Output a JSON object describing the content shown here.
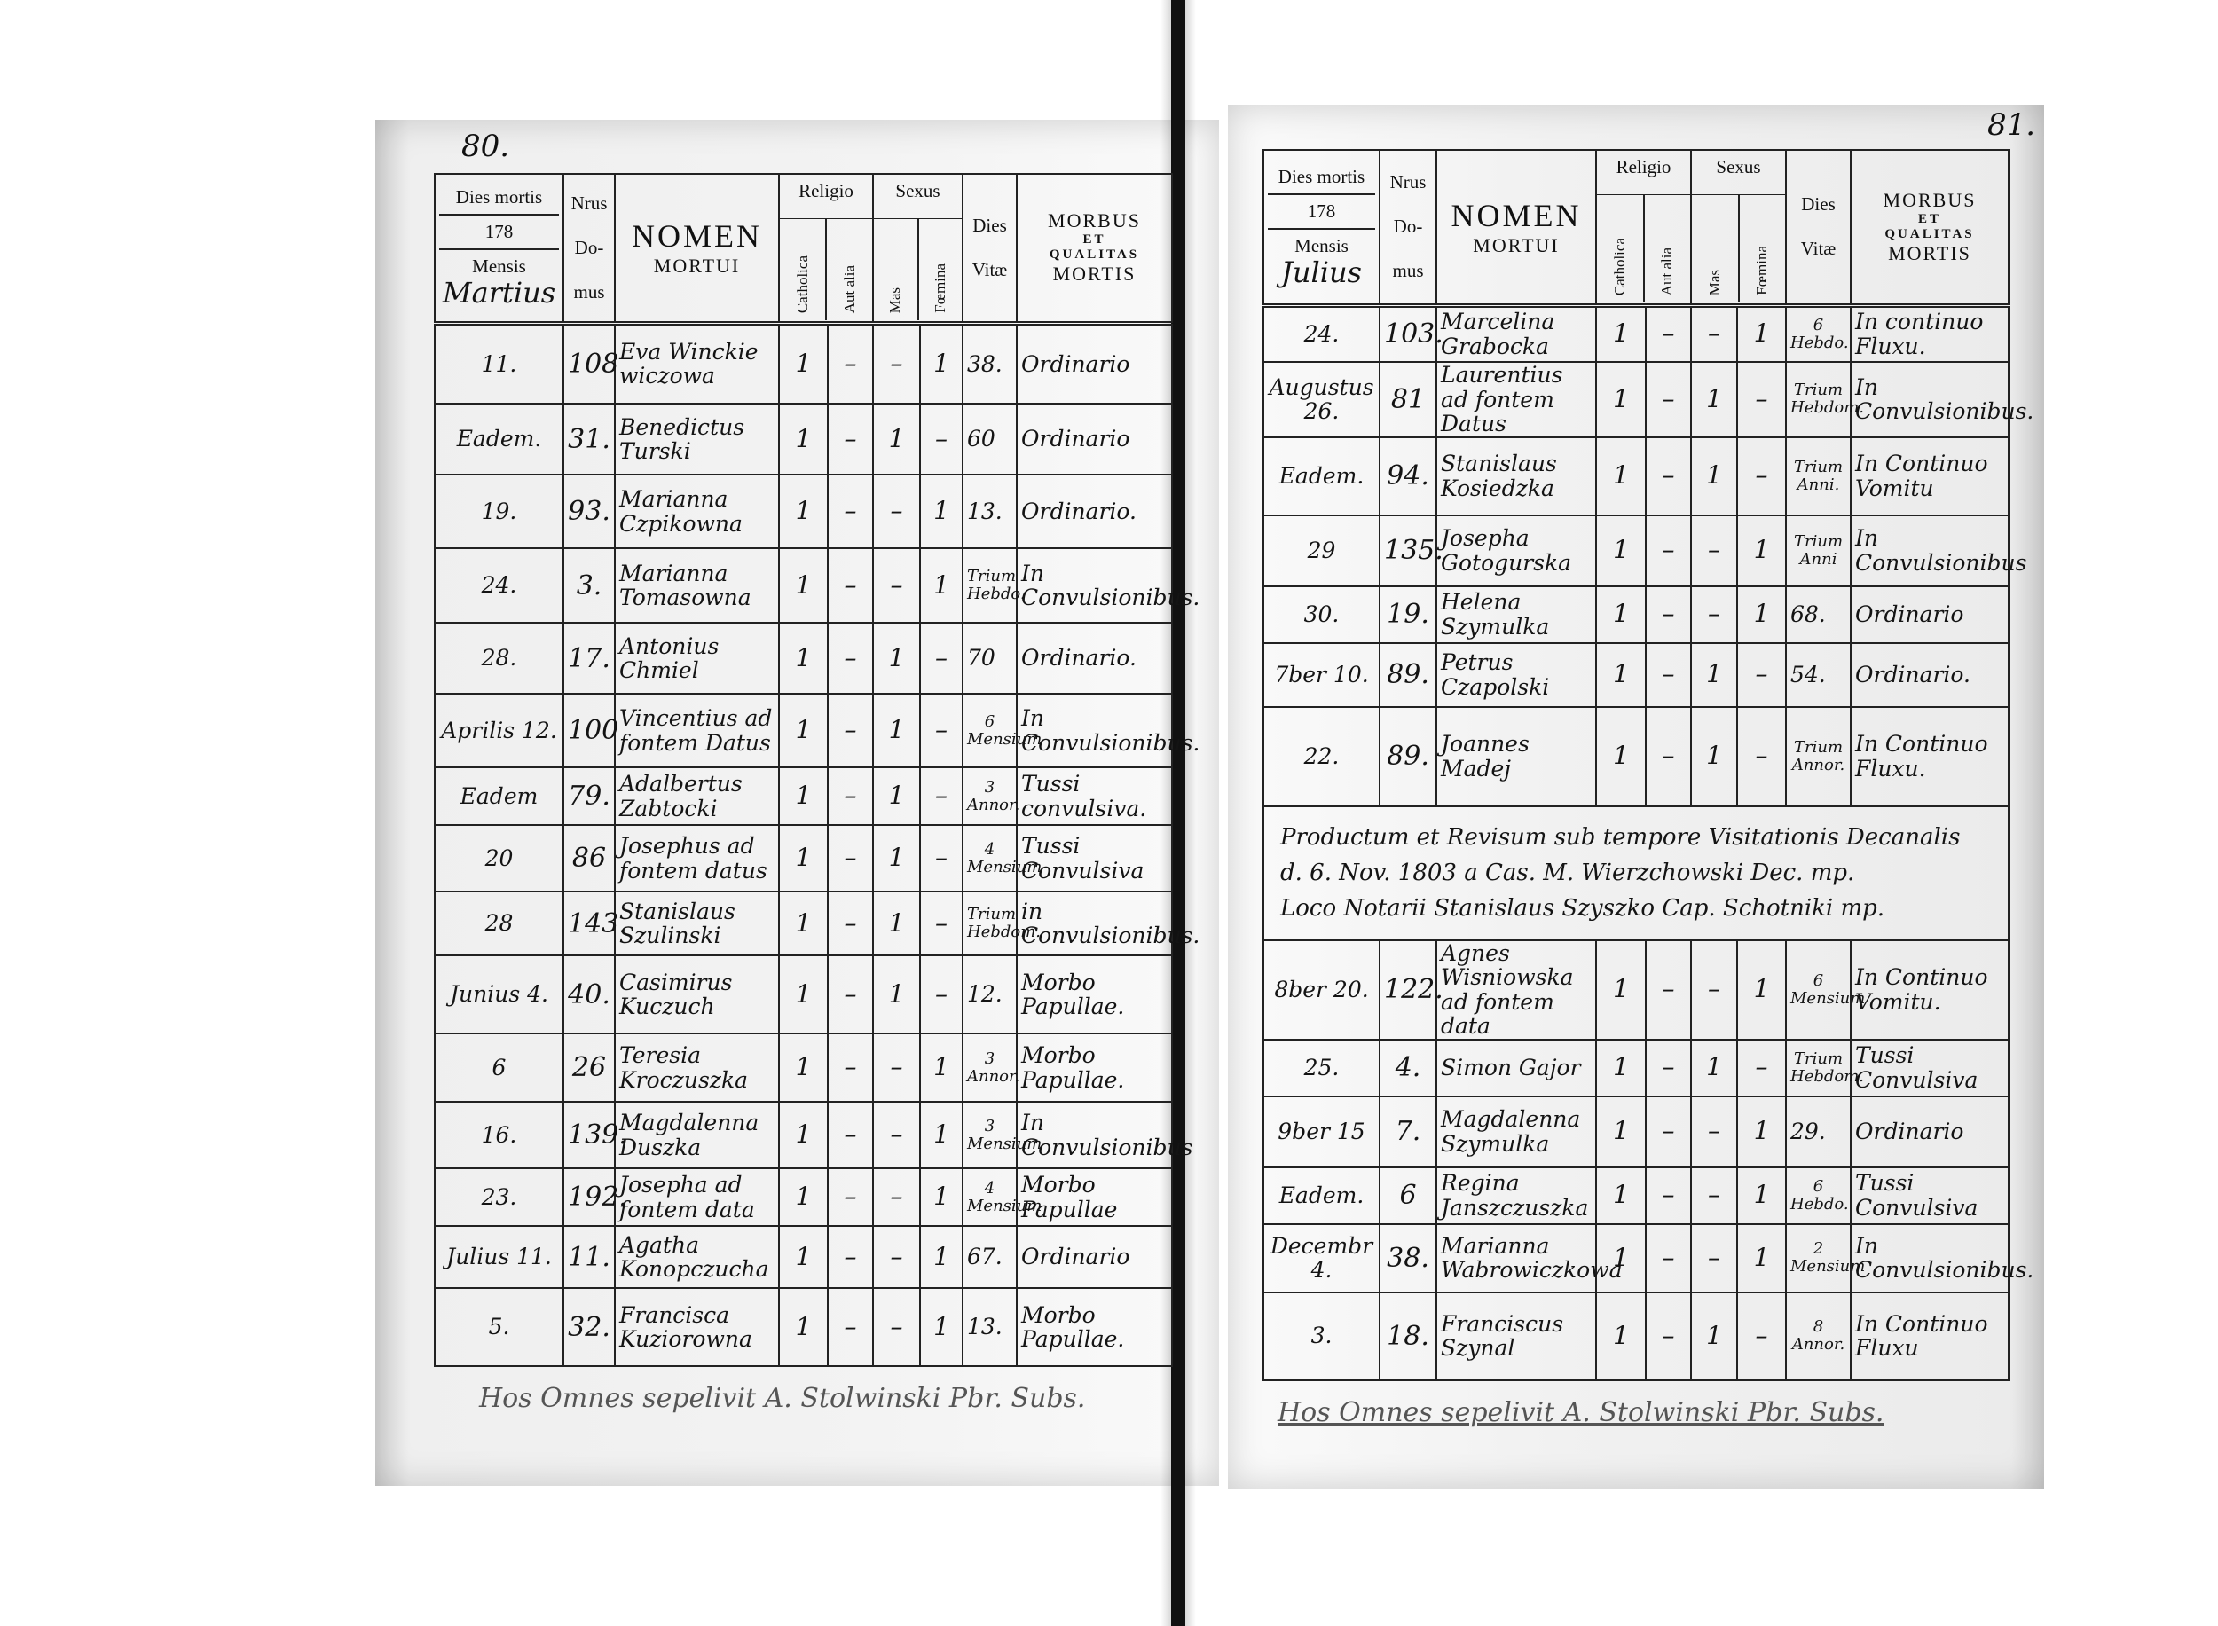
{
  "header": {
    "dies_mortis": "Dies mortis",
    "year": "178",
    "mensis": "Mensis",
    "nrus": "Nrus",
    "do": "Do-",
    "mus": "mus",
    "nomen": "NOMEN",
    "mortui": "MORTUI",
    "religio": "Religio",
    "sexus": "Sexus",
    "catholica": "Catholica",
    "aut_alia": "Aut alia",
    "mas": "Mas",
    "femina": "Fœmina",
    "dies": "Dies",
    "vitae": "Vitæ",
    "morbus": "MORBUS",
    "et": "ET",
    "qualitas": "QUALITAS",
    "mortis": "MORTIS"
  },
  "pages": [
    {
      "page_number": "80.",
      "month": "Martius",
      "rows": [
        {
          "day": "11.",
          "house": "108",
          "name": "Eva Winckie wiczowa",
          "catholica": "1",
          "aut_alia": "–",
          "mas": "–",
          "femina": "1",
          "dies_vitae": "38.",
          "morbus": "Ordinario"
        },
        {
          "day": "Eadem.",
          "house": "31.",
          "name": "Benedictus Turski",
          "catholica": "1",
          "aut_alia": "–",
          "mas": "1",
          "femina": "–",
          "dies_vitae": "60",
          "morbus": "Ordinario"
        },
        {
          "day": "19.",
          "house": "93.",
          "name": "Marianna Czpikowna",
          "catholica": "1",
          "aut_alia": "–",
          "mas": "–",
          "femina": "1",
          "dies_vitae": "13.",
          "morbus": "Ordinario."
        },
        {
          "day": "24.",
          "house": "3.",
          "name": "Marianna Tomasowna",
          "catholica": "1",
          "aut_alia": "–",
          "mas": "–",
          "femina": "1",
          "dies_vitae": "Trium Hebdo.",
          "morbus": "In Convulsionibus."
        },
        {
          "day": "28.",
          "house": "17.",
          "name": "Antonius Chmiel",
          "catholica": "1",
          "aut_alia": "–",
          "mas": "1",
          "femina": "–",
          "dies_vitae": "70",
          "morbus": "Ordinario."
        },
        {
          "day": "Aprilis 12.",
          "house": "100",
          "name": "Vincentius ad fontem Datus",
          "catholica": "1",
          "aut_alia": "–",
          "mas": "1",
          "femina": "–",
          "dies_vitae": "6 Mensium",
          "morbus": "In Convulsionibus."
        },
        {
          "day": "Eadem",
          "house": "79.",
          "name": "Adalbertus Zabtocki",
          "catholica": "1",
          "aut_alia": "–",
          "mas": "1",
          "femina": "–",
          "dies_vitae": "3 Annor.",
          "morbus": "Tussi convulsiva."
        },
        {
          "day": "20",
          "house": "86",
          "name": "Josephus ad fontem datus",
          "catholica": "1",
          "aut_alia": "–",
          "mas": "1",
          "femina": "–",
          "dies_vitae": "4 Mensium",
          "morbus": "Tussi Convulsiva"
        },
        {
          "day": "28",
          "house": "143.",
          "name": "Stanislaus Szulinski",
          "catholica": "1",
          "aut_alia": "–",
          "mas": "1",
          "femina": "–",
          "dies_vitae": "Trium Hebdom.",
          "morbus": "in Convulsionibus."
        },
        {
          "day": "Junius 4.",
          "house": "40.",
          "name": "Casimirus Kuczuch",
          "catholica": "1",
          "aut_alia": "–",
          "mas": "1",
          "femina": "–",
          "dies_vitae": "12.",
          "morbus": "Morbo Papullae."
        },
        {
          "day": "6",
          "house": "26",
          "name": "Teresia Kroczuszka",
          "catholica": "1",
          "aut_alia": "–",
          "mas": "–",
          "femina": "1",
          "dies_vitae": "3 Annor.",
          "morbus": "Morbo Papullae."
        },
        {
          "day": "16.",
          "house": "139.",
          "name": "Magdalenna Duszka",
          "catholica": "1",
          "aut_alia": "–",
          "mas": "–",
          "femina": "1",
          "dies_vitae": "3 Mensium",
          "morbus": "In Convulsionibus"
        },
        {
          "day": "23.",
          "house": "192.",
          "name": "Josepha ad fontem data",
          "catholica": "1",
          "aut_alia": "–",
          "mas": "–",
          "femina": "1",
          "dies_vitae": "4 Mensium",
          "morbus": "Morbo Papullae"
        },
        {
          "day": "Julius 11.",
          "house": "11.",
          "name": "Agatha Konopczucha",
          "catholica": "1",
          "aut_alia": "–",
          "mas": "–",
          "femina": "1",
          "dies_vitae": "67.",
          "morbus": "Ordinario"
        },
        {
          "day": "5.",
          "house": "32.",
          "name": "Francisca Kuziorowna",
          "catholica": "1",
          "aut_alia": "–",
          "mas": "–",
          "femina": "1",
          "dies_vitae": "13.",
          "morbus": "Morbo Papullae."
        }
      ],
      "footer": "Hos Omnes sepelivit A. Stolwinski Pbr. Subs."
    },
    {
      "page_number": "81.",
      "month": "Julius",
      "rows": [
        {
          "day": "24.",
          "house": "103.",
          "name": "Marcelina Grabocka",
          "catholica": "1",
          "aut_alia": "–",
          "mas": "–",
          "femina": "1",
          "dies_vitae": "6 Hebdo.",
          "morbus": "In continuo Fluxu."
        },
        {
          "day": "Augustus 26.",
          "house": "81",
          "name": "Laurentius ad fontem Datus",
          "catholica": "1",
          "aut_alia": "–",
          "mas": "1",
          "femina": "–",
          "dies_vitae": "Trium Hebdom.",
          "morbus": "In Convulsionibus."
        },
        {
          "day": "Eadem.",
          "house": "94.",
          "name": "Stanislaus Kosiedzka",
          "catholica": "1",
          "aut_alia": "–",
          "mas": "1",
          "femina": "–",
          "dies_vitae": "Trium Anni.",
          "morbus": "In Continuo Vomitu"
        },
        {
          "day": "29",
          "house": "135.",
          "name": "Josepha Gotogurska",
          "catholica": "1",
          "aut_alia": "–",
          "mas": "–",
          "femina": "1",
          "dies_vitae": "Trium Anni",
          "morbus": "In Convulsionibus"
        },
        {
          "day": "30.",
          "house": "19.",
          "name": "Helena Szymulka",
          "catholica": "1",
          "aut_alia": "–",
          "mas": "–",
          "femina": "1",
          "dies_vitae": "68.",
          "morbus": "Ordinario"
        },
        {
          "day": "7ber 10.",
          "house": "89.",
          "name": "Petrus Czapolski",
          "catholica": "1",
          "aut_alia": "–",
          "mas": "1",
          "femina": "–",
          "dies_vitae": "54.",
          "morbus": "Ordinario."
        },
        {
          "day": "22.",
          "house": "89.",
          "name": "Joannes Madej",
          "catholica": "1",
          "aut_alia": "–",
          "mas": "1",
          "femina": "–",
          "dies_vitae": "Trium Annor.",
          "morbus": "In Continuo Fluxu."
        },
        {
          "note": [
            "Productum et Revisum sub tempore Visitationis Decanalis",
            "d. 6. Nov. 1803 a Cas. M. Wierzchowski Dec. mp.",
            "Loco Notarii Stanislaus Szyszko Cap. Schotniki mp."
          ]
        },
        {
          "day": "8ber 20.",
          "house": "122.",
          "name": "Agnes Wisniowska ad fontem data",
          "catholica": "1",
          "aut_alia": "–",
          "mas": "–",
          "femina": "1",
          "dies_vitae": "6 Mensium",
          "morbus": "In Continuo Vomitu."
        },
        {
          "day": "25.",
          "house": "4.",
          "name": "Simon Gajor",
          "catholica": "1",
          "aut_alia": "–",
          "mas": "1",
          "femina": "–",
          "dies_vitae": "Trium Hebdom.",
          "morbus": "Tussi Convulsiva"
        },
        {
          "day": "9ber 15",
          "house": "7.",
          "name": "Magdalenna Szymulka",
          "catholica": "1",
          "aut_alia": "–",
          "mas": "–",
          "femina": "1",
          "dies_vitae": "29.",
          "morbus": "Ordinario"
        },
        {
          "day": "Eadem.",
          "house": "6",
          "name": "Regina Janszczuszka",
          "catholica": "1",
          "aut_alia": "–",
          "mas": "–",
          "femina": "1",
          "dies_vitae": "6 Hebdo.",
          "morbus": "Tussi Convulsiva"
        },
        {
          "day": "Decembr 4.",
          "house": "38.",
          "name": "Marianna Wabrowiczkowa",
          "catholica": "1",
          "aut_alia": "–",
          "mas": "–",
          "femina": "1",
          "dies_vitae": "2 Mensium",
          "morbus": "In Convulsionibus."
        },
        {
          "day": "3.",
          "house": "18.",
          "name": "Franciscus Szynal",
          "catholica": "1",
          "aut_alia": "–",
          "mas": "1",
          "femina": "–",
          "dies_vitae": "8 Annor.",
          "morbus": "In Continuo Fluxu"
        }
      ],
      "footer": "Hos Omnes sepelivit A. Stolwinski Pbr. Subs."
    }
  ]
}
